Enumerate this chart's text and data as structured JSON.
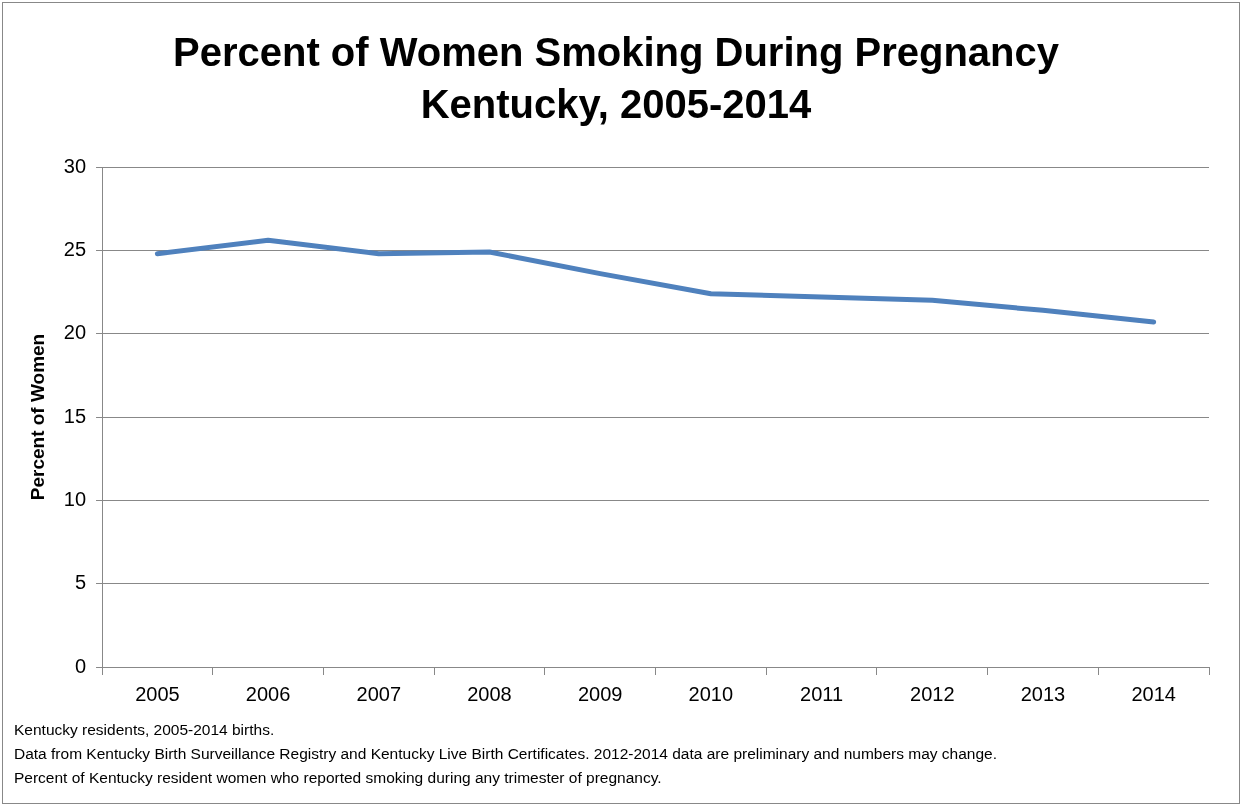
{
  "chart_data": {
    "type": "line",
    "title": "Percent of Women Smoking During Pregnancy",
    "subtitle": "Kentucky, 2005-2014",
    "ylabel": "Percent of Women",
    "categories": [
      "2005",
      "2006",
      "2007",
      "2008",
      "2009",
      "2010",
      "2011",
      "2012",
      "2013",
      "2014"
    ],
    "series": [
      {
        "color": "#4f81bd",
        "values": [
          24.8,
          25.6,
          24.8,
          24.9,
          23.6,
          22.4,
          22.2,
          22.0,
          21.4,
          20.7
        ]
      }
    ],
    "ylim": [
      0,
      30
    ],
    "yticks": [
      0,
      5,
      10,
      15,
      20,
      25,
      30
    ],
    "grid": "y",
    "legend": false,
    "marker": "none",
    "line_style": "solid",
    "annotations": [
      "Kentucky residents, 2005-2014 births.",
      "Data from Kentucky Birth Surveillance Registry and Kentucky Live Birth Certificates. 2012-2014 data are preliminary and numbers may change.",
      "Percent of Kentucky resident women who reported smoking during any trimester of pregnancy."
    ]
  }
}
